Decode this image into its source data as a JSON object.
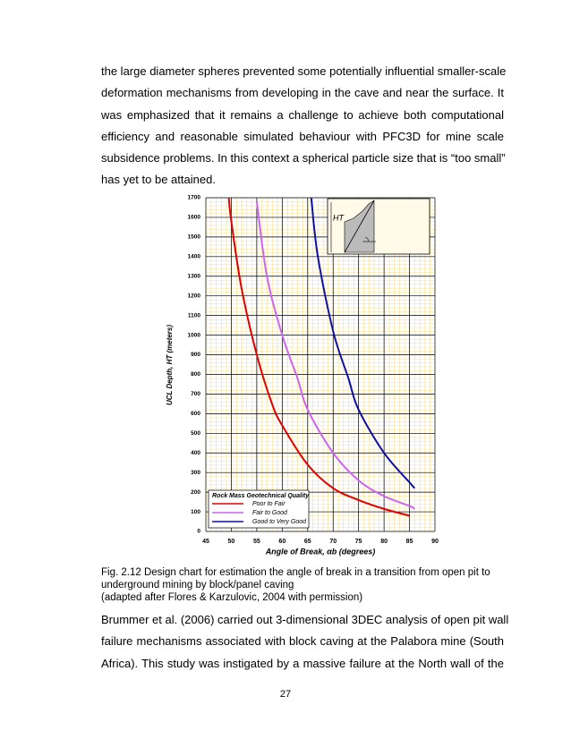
{
  "paragraph1": [
    "the large diameter spheres prevented some potentially influential smaller-scale",
    "deformation mechanisms from developing in the cave and near the surface.  It",
    "was emphasized that it remains a challenge to achieve both computational",
    "efficiency and reasonable simulated behaviour with PFC3D for mine scale",
    "subsidence problems.  In this context a spherical particle size that is “too small”",
    "has yet to be attained."
  ],
  "caption": [
    "Fig. 2.12  Design chart for estimation the angle of break in a transition from open pit to",
    "underground mining by block/panel caving",
    "(adapted after Flores & Karzulovic, 2004 with permission)"
  ],
  "paragraph2": [
    "Brummer et al. (2006) carried out 3-dimensional 3DEC analysis of open pit wall",
    "failure mechanisms associated with block caving at the Palabora mine (South",
    "Africa).  This study was instigated by a massive failure at the North wall of the"
  ],
  "page_number": "27",
  "chart_data": {
    "type": "line",
    "x_label": "Angle of Break, αb (degrees)",
    "y_label": "UCL  Depth,  HT  (meters)",
    "legend_title": "Rock Mass Geotechnical Quality",
    "inset_label": "HT",
    "xlim": [
      45,
      90
    ],
    "ylim": [
      0,
      1700
    ],
    "xticks": [
      45,
      50,
      55,
      60,
      65,
      70,
      75,
      80,
      85,
      90
    ],
    "yticks": [
      0,
      100,
      200,
      300,
      400,
      500,
      600,
      700,
      800,
      900,
      1000,
      1100,
      1200,
      1300,
      1400,
      1500,
      1600,
      1700
    ],
    "grid": true,
    "series": [
      {
        "name": "Poor  to  Fair",
        "color": "#e00000",
        "x": [
          49.5,
          50,
          52,
          55,
          58,
          60,
          65,
          70,
          75,
          80,
          85
        ],
        "values": [
          1700,
          1580,
          1240,
          900,
          650,
          540,
          340,
          220,
          160,
          115,
          80
        ]
      },
      {
        "name": "Fair  to  Good",
        "color": "#cc66ee",
        "x": [
          55,
          57,
          60,
          63,
          65,
          70,
          75,
          80,
          85,
          86
        ],
        "values": [
          1680,
          1300,
          1000,
          780,
          620,
          400,
          260,
          180,
          130,
          115
        ]
      },
      {
        "name": "Good  to  Very Good",
        "color": "#1010a0",
        "x": [
          65.7,
          67,
          70,
          73,
          75,
          80,
          85,
          86
        ],
        "values": [
          1700,
          1400,
          1020,
          780,
          620,
          400,
          250,
          220
        ]
      }
    ]
  }
}
